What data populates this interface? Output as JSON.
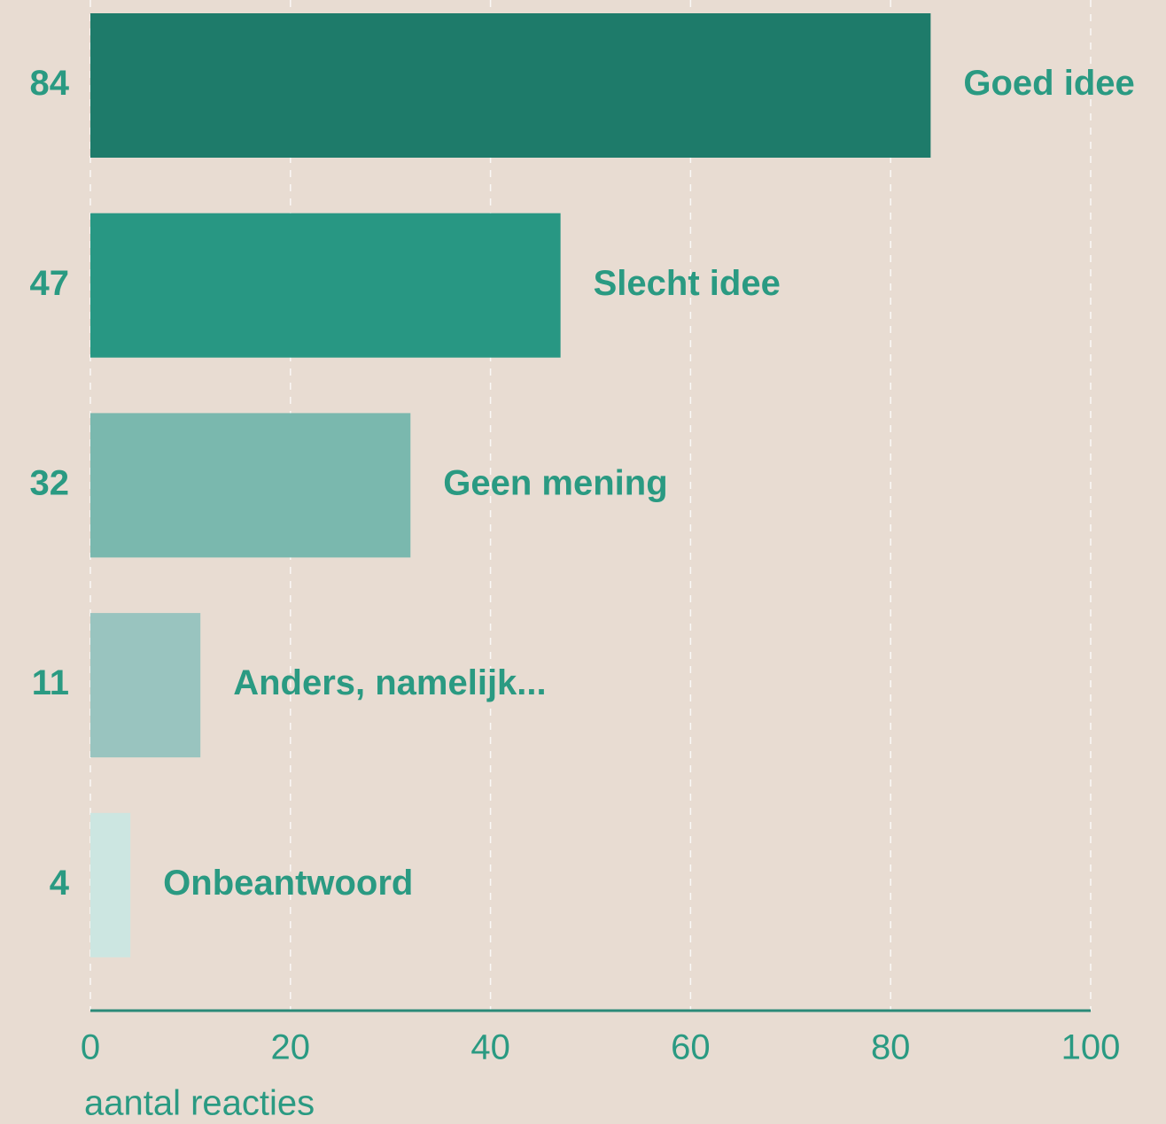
{
  "chart_data": {
    "type": "bar",
    "orientation": "horizontal",
    "categories": [
      "Goed idee",
      "Slecht idee",
      "Geen mening",
      "Anders, namelijk...",
      "Onbeantwoord"
    ],
    "values": [
      84,
      47,
      32,
      11,
      4
    ],
    "colors": [
      "#1e7b6a",
      "#289783",
      "#7ab8ae",
      "#99c4bf",
      "#cce6e1"
    ],
    "xlim": [
      0,
      100
    ],
    "xticks": [
      0,
      20,
      40,
      60,
      80,
      100
    ],
    "x_label": "aantal reacties",
    "grid": true
  }
}
